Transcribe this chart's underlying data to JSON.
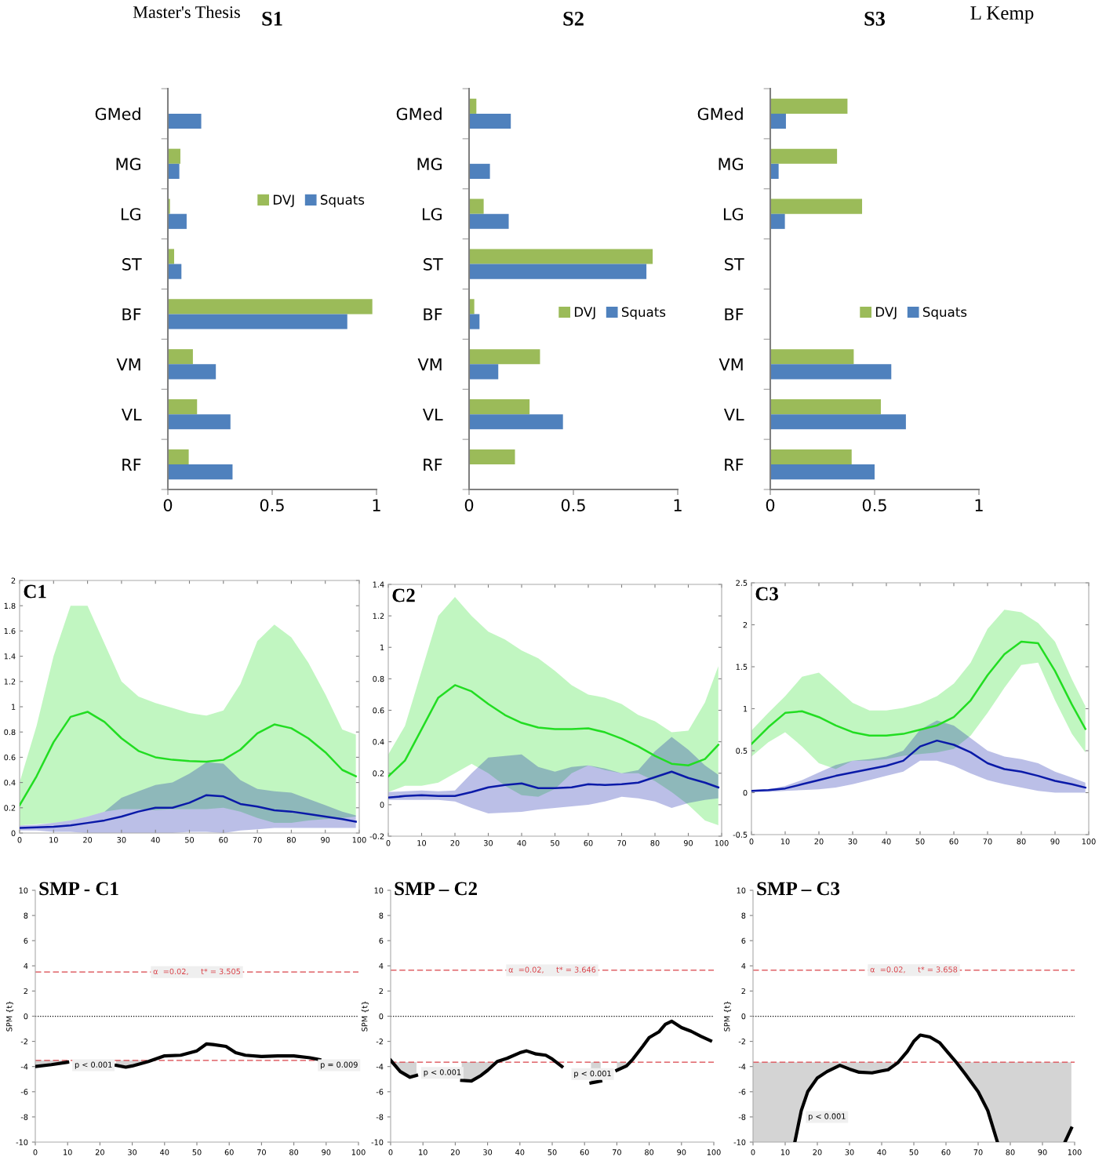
{
  "chart_data": [
    {
      "type": "bar",
      "title": "S1",
      "orientation": "horizontal",
      "annotations": [
        "Master's Thesis",
        "L Kemp"
      ],
      "categories": [
        "GMed",
        "MG",
        "LG",
        "ST",
        "BF",
        "VM",
        "VL",
        "RF"
      ],
      "series": [
        {
          "name": "DVJ",
          "color": "#9bbb59",
          "values": [
            null,
            0.06,
            0.01,
            0.03,
            0.98,
            0.12,
            0.14,
            0.1
          ]
        },
        {
          "name": "Squats",
          "color": "#4f81bd",
          "values": [
            0.16,
            0.055,
            0.09,
            0.065,
            0.86,
            0.23,
            0.3,
            0.31
          ]
        }
      ],
      "xlim": [
        0,
        1
      ],
      "xticks": [
        0,
        0.5,
        1
      ],
      "legend": "top right"
    },
    {
      "type": "bar",
      "title": "S2",
      "orientation": "horizontal",
      "categories": [
        "GMed",
        "MG",
        "LG",
        "ST",
        "BF",
        "VM",
        "VL",
        "RF"
      ],
      "series": [
        {
          "name": "DVJ",
          "color": "#9bbb59",
          "values": [
            0.035,
            null,
            0.07,
            0.88,
            0.025,
            0.34,
            0.29,
            0.22
          ]
        },
        {
          "name": "Squats",
          "color": "#4f81bd",
          "values": [
            0.2,
            0.1,
            0.19,
            0.85,
            0.05,
            0.14,
            0.45,
            null
          ]
        }
      ],
      "xlim": [
        0,
        1
      ],
      "xticks": [
        0,
        0.5,
        1
      ],
      "legend": "right"
    },
    {
      "type": "bar",
      "title": "S3",
      "orientation": "horizontal",
      "categories": [
        "GMed",
        "MG",
        "LG",
        "ST",
        "BF",
        "VM",
        "VL",
        "RF"
      ],
      "series": [
        {
          "name": "DVJ",
          "color": "#9bbb59",
          "values": [
            0.37,
            0.32,
            0.44,
            null,
            null,
            0.4,
            0.53,
            0.39
          ]
        },
        {
          "name": "Squats",
          "color": "#4f81bd",
          "values": [
            0.075,
            0.04,
            0.07,
            null,
            null,
            0.58,
            0.65,
            0.5
          ]
        }
      ],
      "xlim": [
        0,
        1
      ],
      "xticks": [
        0,
        0.5,
        1
      ],
      "legend": "right"
    },
    {
      "type": "line",
      "title": "C1",
      "x": [
        0,
        5,
        10,
        15,
        20,
        25,
        30,
        35,
        40,
        45,
        50,
        55,
        60,
        65,
        70,
        75,
        80,
        85,
        90,
        95,
        99
      ],
      "series": [
        {
          "color": "#22dd22",
          "values": [
            0.22,
            0.45,
            0.72,
            0.92,
            0.96,
            0.88,
            0.75,
            0.65,
            0.6,
            0.58,
            0.57,
            0.565,
            0.58,
            0.66,
            0.79,
            0.86,
            0.83,
            0.75,
            0.64,
            0.5,
            0.45
          ],
          "upper": [
            0.4,
            0.85,
            1.4,
            1.8,
            1.8,
            1.5,
            1.2,
            1.08,
            1.03,
            0.99,
            0.95,
            0.93,
            0.97,
            1.18,
            1.52,
            1.65,
            1.55,
            1.35,
            1.1,
            0.82,
            0.78
          ],
          "lower": [
            0.06,
            0.07,
            0.08,
            0.1,
            0.13,
            0.17,
            0.19,
            0.19,
            0.18,
            0.19,
            0.19,
            0.19,
            0.2,
            0.17,
            0.12,
            0.08,
            0.08,
            0.1,
            0.11,
            0.12,
            0.13
          ]
        },
        {
          "color": "#0a1aa8",
          "values": [
            0.04,
            0.045,
            0.05,
            0.06,
            0.08,
            0.1,
            0.13,
            0.17,
            0.2,
            0.2,
            0.24,
            0.3,
            0.29,
            0.23,
            0.21,
            0.18,
            0.17,
            0.15,
            0.13,
            0.11,
            0.09
          ],
          "upper": [
            0.06,
            0.065,
            0.08,
            0.1,
            0.13,
            0.17,
            0.28,
            0.33,
            0.38,
            0.4,
            0.47,
            0.56,
            0.55,
            0.42,
            0.35,
            0.33,
            0.32,
            0.27,
            0.22,
            0.17,
            0.14
          ],
          "lower": [
            0.02,
            0.02,
            0.01,
            0.01,
            0.0,
            0.0,
            0.0,
            0.0,
            0.0,
            0.0,
            0.01,
            0.01,
            0.0,
            0.02,
            0.03,
            0.04,
            0.04,
            0.04,
            0.04,
            0.04,
            0.04
          ]
        }
      ],
      "xlim": [
        0,
        100
      ],
      "xticks": [
        0,
        10,
        20,
        30,
        40,
        50,
        60,
        70,
        80,
        90,
        100
      ],
      "ylim": [
        0,
        2
      ],
      "yticks": [
        0,
        0.2,
        0.4,
        0.6,
        0.8,
        1,
        1.2,
        1.4,
        1.6,
        1.8,
        2
      ]
    },
    {
      "type": "line",
      "title": "C2",
      "x": [
        0,
        5,
        10,
        15,
        20,
        25,
        30,
        35,
        40,
        45,
        50,
        55,
        60,
        65,
        70,
        75,
        80,
        85,
        90,
        95,
        99
      ],
      "series": [
        {
          "color": "#22dd22",
          "values": [
            0.18,
            0.28,
            0.48,
            0.68,
            0.76,
            0.72,
            0.64,
            0.57,
            0.52,
            0.49,
            0.48,
            0.48,
            0.485,
            0.46,
            0.42,
            0.37,
            0.31,
            0.26,
            0.25,
            0.29,
            0.38
          ],
          "upper": [
            0.32,
            0.5,
            0.85,
            1.2,
            1.32,
            1.2,
            1.1,
            1.05,
            0.98,
            0.93,
            0.85,
            0.76,
            0.7,
            0.68,
            0.64,
            0.57,
            0.53,
            0.46,
            0.47,
            0.65,
            0.88
          ],
          "lower": [
            0.08,
            0.12,
            0.12,
            0.14,
            0.2,
            0.26,
            0.2,
            0.12,
            0.06,
            0.05,
            0.1,
            0.2,
            0.25,
            0.22,
            0.2,
            0.2,
            0.15,
            0.08,
            0.0,
            -0.1,
            -0.13
          ]
        },
        {
          "color": "#0a1aa8",
          "values": [
            0.045,
            0.055,
            0.06,
            0.055,
            0.055,
            0.08,
            0.11,
            0.125,
            0.135,
            0.105,
            0.105,
            0.11,
            0.13,
            0.125,
            0.13,
            0.14,
            0.175,
            0.21,
            0.17,
            0.14,
            0.11
          ],
          "upper": [
            0.08,
            0.085,
            0.09,
            0.085,
            0.09,
            0.2,
            0.3,
            0.31,
            0.32,
            0.24,
            0.21,
            0.24,
            0.25,
            0.23,
            0.2,
            0.22,
            0.34,
            0.43,
            0.35,
            0.25,
            0.19
          ],
          "lower": [
            0.03,
            0.03,
            0.03,
            0.03,
            0.02,
            -0.02,
            -0.055,
            -0.05,
            -0.045,
            -0.03,
            -0.02,
            -0.01,
            0.0,
            0.02,
            0.05,
            0.04,
            0.02,
            -0.02,
            0.01,
            0.03,
            0.04
          ]
        }
      ],
      "xlim": [
        0,
        100
      ],
      "xticks": [
        0,
        10,
        20,
        30,
        40,
        50,
        60,
        70,
        80,
        90,
        100
      ],
      "ylim": [
        -0.2,
        1.4
      ],
      "yticks": [
        -0.2,
        0,
        0.2,
        0.4,
        0.6,
        0.8,
        1,
        1.2,
        1.4
      ]
    },
    {
      "type": "line",
      "title": "C3",
      "x": [
        0,
        5,
        10,
        15,
        20,
        25,
        30,
        35,
        40,
        45,
        50,
        55,
        60,
        65,
        70,
        75,
        80,
        85,
        90,
        95,
        99
      ],
      "series": [
        {
          "color": "#22dd22",
          "values": [
            0.58,
            0.78,
            0.95,
            0.97,
            0.9,
            0.8,
            0.72,
            0.68,
            0.68,
            0.7,
            0.75,
            0.8,
            0.9,
            1.1,
            1.4,
            1.65,
            1.8,
            1.78,
            1.45,
            1.05,
            0.76
          ],
          "upper": [
            0.74,
            0.95,
            1.15,
            1.38,
            1.43,
            1.25,
            1.07,
            0.98,
            0.98,
            1.01,
            1.06,
            1.15,
            1.3,
            1.55,
            1.95,
            2.18,
            2.15,
            2.02,
            1.8,
            1.35,
            1.03
          ],
          "lower": [
            0.43,
            0.6,
            0.72,
            0.55,
            0.35,
            0.28,
            0.38,
            0.38,
            0.4,
            0.44,
            0.46,
            0.48,
            0.52,
            0.68,
            0.95,
            1.25,
            1.52,
            1.55,
            1.1,
            0.7,
            0.48
          ]
        },
        {
          "color": "#0a1aa8",
          "values": [
            0.02,
            0.03,
            0.05,
            0.1,
            0.15,
            0.2,
            0.24,
            0.28,
            0.32,
            0.38,
            0.55,
            0.62,
            0.57,
            0.48,
            0.35,
            0.28,
            0.25,
            0.2,
            0.14,
            0.1,
            0.06
          ],
          "upper": [
            0.03,
            0.04,
            0.08,
            0.15,
            0.24,
            0.33,
            0.38,
            0.4,
            0.43,
            0.5,
            0.75,
            0.86,
            0.8,
            0.65,
            0.5,
            0.43,
            0.4,
            0.35,
            0.25,
            0.18,
            0.12
          ],
          "lower": [
            0.01,
            0.01,
            0.02,
            0.03,
            0.04,
            0.06,
            0.1,
            0.15,
            0.2,
            0.25,
            0.38,
            0.38,
            0.32,
            0.23,
            0.15,
            0.1,
            0.06,
            0.02,
            0.0,
            0.0,
            0.0
          ]
        }
      ],
      "xlim": [
        0,
        100
      ],
      "xticks": [
        0,
        10,
        20,
        30,
        40,
        50,
        60,
        70,
        80,
        90,
        100
      ],
      "ylim": [
        -0.5,
        2.5
      ],
      "yticks": [
        -0.5,
        0,
        0.5,
        1,
        1.5,
        2,
        2.5
      ]
    },
    {
      "type": "line",
      "title": "SMP - C1",
      "ylabel": "SPM {t}",
      "series": [
        {
          "color": "#000000",
          "x": [
            0,
            5,
            10,
            12,
            15,
            20,
            25,
            28,
            30,
            35,
            40,
            45,
            50,
            53,
            55,
            59,
            62,
            65,
            70,
            75,
            80,
            85,
            88
          ],
          "values": [
            -4.0,
            -3.85,
            -3.65,
            null,
            null,
            null,
            -3.9,
            -4.05,
            -3.95,
            -3.6,
            -3.15,
            -3.1,
            -2.75,
            -2.2,
            -2.25,
            -2.4,
            -2.9,
            -3.1,
            -3.2,
            -3.15,
            -3.15,
            -3.3,
            -3.45
          ],
          "lower": [
            -4.0,
            -3.85,
            -3.65,
            null,
            null,
            null,
            -3.9,
            -4.05,
            -3.95,
            -3.6,
            null,
            null,
            null,
            null,
            null,
            null,
            null,
            null,
            null,
            null,
            null,
            null,
            null
          ],
          "upper": [
            -3.505,
            -3.505,
            -3.505,
            null,
            null,
            null,
            -3.505,
            -3.505,
            -3.505,
            -3.505,
            null,
            null,
            null,
            null,
            null,
            null,
            null,
            null,
            null,
            null,
            null,
            null,
            null
          ]
        }
      ],
      "ref_lines": [
        {
          "axis": "y",
          "value": 3.505,
          "label": "α  =0.02,     t* = 3.505",
          "color": "#d9434a",
          "line_style": "dashed"
        },
        {
          "axis": "y",
          "value": -3.505,
          "color": "#d9434a",
          "line_style": "dashed"
        },
        {
          "axis": "y",
          "value": 0,
          "color": "#000000",
          "line_style": "dotted"
        }
      ],
      "annotations": [
        "p < 0.001",
        "p = 0.009"
      ],
      "xlim": [
        0,
        100
      ],
      "xticks": [
        0,
        10,
        20,
        30,
        40,
        50,
        60,
        70,
        80,
        90,
        100
      ],
      "ylim": [
        -10,
        10
      ],
      "yticks": [
        -10,
        -8,
        -6,
        -4,
        -2,
        0,
        2,
        4,
        6,
        8,
        10
      ]
    },
    {
      "type": "line",
      "title": "SMP – C2",
      "ylabel": "SPM {t}",
      "series": [
        {
          "color": "#000000",
          "x": [
            0,
            3,
            6,
            8,
            10,
            15,
            20,
            22,
            25,
            28,
            30,
            33,
            36,
            40,
            42,
            45,
            48,
            50,
            53,
            57,
            62,
            65,
            68,
            70,
            73,
            75,
            78,
            80,
            83,
            85,
            87,
            90,
            93,
            96,
            99
          ],
          "values": [
            -3.5,
            -4.4,
            -4.85,
            -4.7,
            null,
            null,
            null,
            -5.1,
            -5.15,
            -4.7,
            -4.3,
            -3.6,
            -3.35,
            -2.9,
            -2.75,
            -3.0,
            -3.1,
            -3.4,
            -4.0,
            null,
            -5.3,
            -5.15,
            null,
            -4.3,
            -3.95,
            -3.4,
            -2.4,
            -1.7,
            -1.25,
            -0.65,
            -0.4,
            -0.9,
            -1.2,
            -1.6,
            -1.95
          ],
          "lower": [
            -3.5,
            -4.4,
            -4.85,
            -4.7,
            null,
            null,
            null,
            -5.1,
            -5.15,
            -4.7,
            -4.3,
            -3.646,
            null,
            null,
            null,
            null,
            null,
            null,
            null,
            null,
            -5.3,
            -5.15,
            null,
            -4.3,
            -3.95,
            null,
            null,
            null,
            null,
            null,
            null,
            null,
            null,
            null,
            null
          ],
          "upper": [
            -3.646,
            -3.646,
            -3.646,
            -3.646,
            null,
            null,
            null,
            -3.646,
            -3.646,
            -3.646,
            -3.646,
            -3.646,
            null,
            null,
            null,
            null,
            null,
            null,
            null,
            null,
            -3.646,
            -3.646,
            null,
            -3.646,
            -3.646,
            null,
            null,
            null,
            null,
            null,
            null,
            null,
            null,
            null,
            null
          ]
        }
      ],
      "ref_lines": [
        {
          "axis": "y",
          "value": 3.646,
          "label": "α  =0.02,     t* = 3.646",
          "color": "#d9434a",
          "line_style": "dashed"
        },
        {
          "axis": "y",
          "value": -3.646,
          "color": "#d9434a",
          "line_style": "dashed"
        },
        {
          "axis": "y",
          "value": 0,
          "color": "#000000",
          "line_style": "dotted"
        }
      ],
      "annotations": [
        "p < 0.001",
        "p < 0.001"
      ],
      "xlim": [
        0,
        100
      ],
      "xticks": [
        0,
        10,
        20,
        30,
        40,
        50,
        60,
        70,
        80,
        90,
        100
      ],
      "ylim": [
        -10,
        10
      ],
      "yticks": [
        -10,
        -8,
        -6,
        -4,
        -2,
        0,
        2,
        4,
        6,
        8,
        10
      ]
    },
    {
      "type": "line",
      "title": "SMP – C3",
      "ylabel": "SPM {t}",
      "series": [
        {
          "color": "#000000",
          "x": [
            0,
            5,
            10,
            13,
            15,
            17,
            20,
            23,
            27,
            30,
            33,
            37,
            40,
            42,
            45,
            48,
            50,
            52,
            55,
            58,
            60,
            63,
            66,
            70,
            73,
            76,
            80,
            85,
            90,
            95,
            97,
            99
          ],
          "values": [
            null,
            null,
            null,
            -10,
            -7.5,
            -6.0,
            -4.9,
            -4.4,
            -3.9,
            -4.2,
            -4.45,
            -4.5,
            -4.35,
            -4.25,
            -3.7,
            -2.8,
            -2.0,
            -1.5,
            -1.65,
            -2.1,
            -2.7,
            -3.6,
            -4.6,
            -6.0,
            -7.5,
            -10,
            null,
            null,
            null,
            null,
            -10,
            -8.9
          ],
          "lower": [
            -10,
            -10,
            -10,
            -10,
            -7.5,
            -6.0,
            -4.9,
            -4.4,
            -3.9,
            -4.2,
            -4.45,
            -4.5,
            -4.35,
            -4.25,
            -3.7,
            null,
            null,
            null,
            null,
            null,
            null,
            -3.658,
            -4.6,
            -6.0,
            -7.5,
            -10,
            -10,
            -10,
            -10,
            -10,
            -10,
            -8.9
          ],
          "upper": [
            -3.658,
            -3.658,
            -3.658,
            -3.658,
            -3.658,
            -3.658,
            -3.658,
            -3.658,
            -3.658,
            -3.658,
            -3.658,
            -3.658,
            -3.658,
            -3.658,
            -3.658,
            null,
            null,
            null,
            null,
            null,
            null,
            -3.658,
            -3.658,
            -3.658,
            -3.658,
            -3.658,
            -3.658,
            -3.658,
            -3.658,
            -3.658,
            -3.658,
            -3.658
          ]
        }
      ],
      "ref_lines": [
        {
          "axis": "y",
          "value": 3.658,
          "label": "α  =0.02,     t* = 3.658",
          "color": "#d9434a",
          "line_style": "dashed"
        },
        {
          "axis": "y",
          "value": -3.658,
          "color": "#d9434a",
          "line_style": "dashed"
        },
        {
          "axis": "y",
          "value": 0,
          "color": "#000000",
          "line_style": "dotted"
        }
      ],
      "annotations": [
        "p < 0.001"
      ],
      "xlim": [
        0,
        100
      ],
      "xticks": [
        0,
        10,
        20,
        30,
        40,
        50,
        60,
        70,
        80,
        90,
        100
      ],
      "ylim": [
        -10,
        10
      ],
      "yticks": [
        -10,
        -8,
        -6,
        -4,
        -2,
        0,
        2,
        4,
        6,
        8,
        10
      ]
    }
  ]
}
